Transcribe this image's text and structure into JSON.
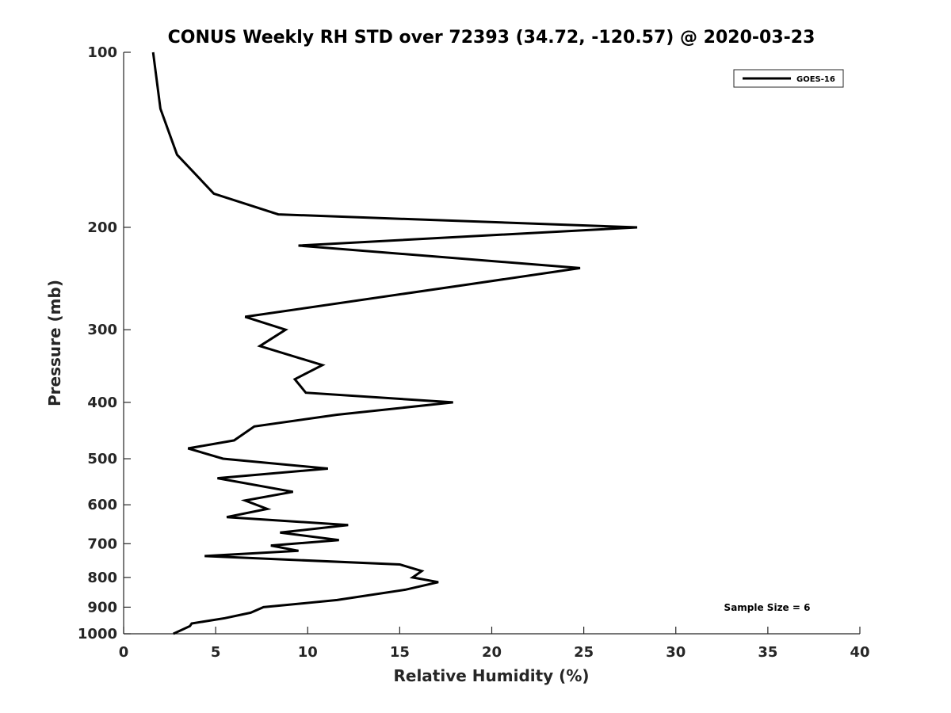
{
  "chart_data": {
    "type": "line",
    "title": "CONUS Weekly RH STD over 72393 (34.72, -120.57) @ 2020-03-23",
    "xlabel": "Relative Humidity (%)",
    "ylabel": "Pressure (mb)",
    "xlim": [
      0,
      40
    ],
    "ylim": [
      100,
      1000
    ],
    "yscale": "log",
    "reverse_y": true,
    "x_ticks": [
      0,
      5,
      10,
      15,
      20,
      25,
      30,
      35,
      40
    ],
    "y_ticks": [
      100,
      200,
      300,
      400,
      500,
      600,
      700,
      800,
      900,
      1000
    ],
    "grid": false,
    "legend_position": "top-right",
    "annotation": "Sample Size = 6",
    "series": [
      {
        "name": "GOES-16",
        "color": "#000000",
        "points": [
          [
            1.6,
            100
          ],
          [
            2.0,
            125
          ],
          [
            2.9,
            150
          ],
          [
            4.9,
            175
          ],
          [
            8.4,
            190
          ],
          [
            27.9,
            200
          ],
          [
            9.5,
            215
          ],
          [
            24.8,
            235
          ],
          [
            19.0,
            250
          ],
          [
            6.6,
            285
          ],
          [
            8.8,
            300
          ],
          [
            7.4,
            320
          ],
          [
            10.8,
            345
          ],
          [
            9.3,
            365
          ],
          [
            9.9,
            385
          ],
          [
            17.9,
            400
          ],
          [
            11.6,
            420
          ],
          [
            7.1,
            440
          ],
          [
            6.0,
            465
          ],
          [
            3.5,
            480
          ],
          [
            5.4,
            500
          ],
          [
            11.1,
            520
          ],
          [
            5.1,
            540
          ],
          [
            9.2,
            570
          ],
          [
            6.6,
            590
          ],
          [
            7.8,
            610
          ],
          [
            5.6,
            630
          ],
          [
            12.2,
            650
          ],
          [
            8.5,
            670
          ],
          [
            11.7,
            690
          ],
          [
            8.0,
            705
          ],
          [
            9.5,
            720
          ],
          [
            4.4,
            735
          ],
          [
            15.0,
            760
          ],
          [
            16.2,
            780
          ],
          [
            15.7,
            800
          ],
          [
            17.1,
            815
          ],
          [
            15.3,
            840
          ],
          [
            11.6,
            875
          ],
          [
            7.6,
            900
          ],
          [
            6.9,
            920
          ],
          [
            5.5,
            940
          ],
          [
            3.7,
            960
          ],
          [
            3.6,
            970
          ],
          [
            2.7,
            1000
          ]
        ]
      }
    ]
  }
}
